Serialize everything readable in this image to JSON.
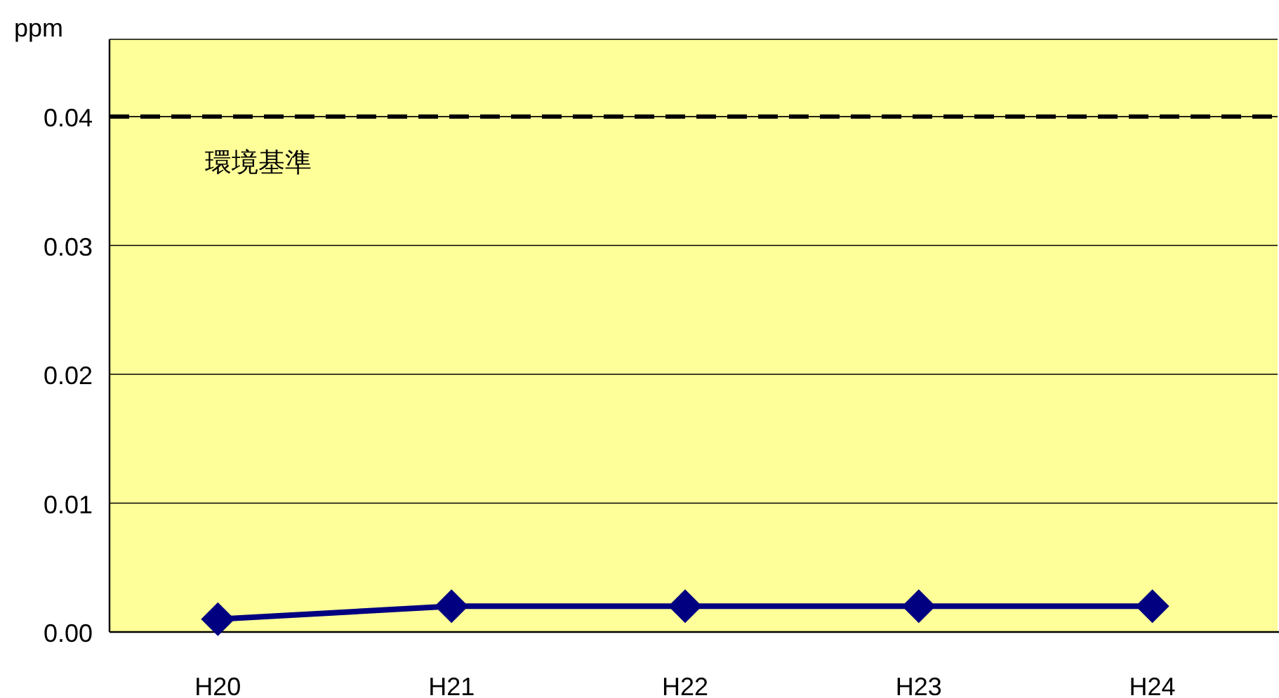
{
  "chart_data": {
    "type": "line",
    "ylabel": "ppm",
    "categories": [
      "H20",
      "H21",
      "H22",
      "H23",
      "H24"
    ],
    "series": [
      {
        "color": "#000080",
        "values": [
          0.001,
          0.002,
          0.002,
          0.002,
          0.002
        ]
      }
    ],
    "marker": "diamond",
    "line_style": "solid",
    "ylim": [
      0,
      0.046
    ],
    "yticks": [
      {
        "value": 0,
        "label": "0.00"
      },
      0.01,
      0.02,
      0.03,
      0.04
    ],
    "grid": "y",
    "ref_lines": [
      {
        "axis": "y",
        "value": 0.04,
        "label": "環境基準",
        "color": "#000000",
        "line_style": "dashed"
      }
    ]
  }
}
